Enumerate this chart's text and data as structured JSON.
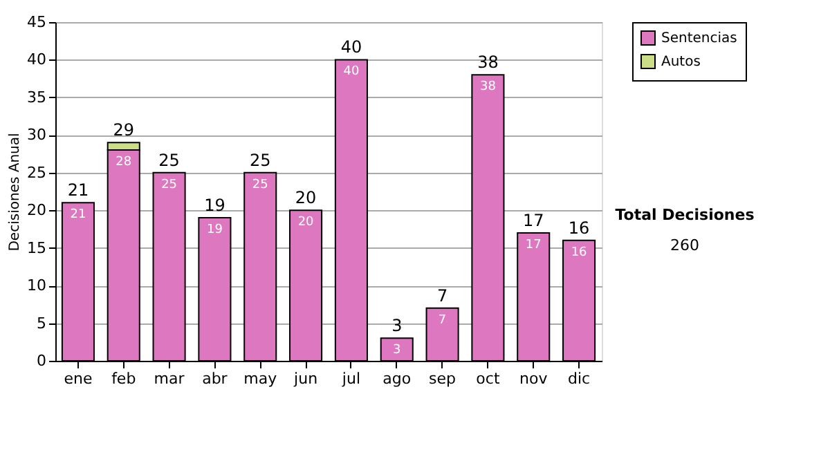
{
  "chart_data": {
    "type": "bar",
    "stacked": true,
    "ylabel": "Decisiones Anual",
    "categories": [
      "ene",
      "feb",
      "mar",
      "abr",
      "may",
      "jun",
      "jul",
      "ago",
      "sep",
      "oct",
      "nov",
      "dic"
    ],
    "series": [
      {
        "name": "Sentencias",
        "color": "#dd77c0",
        "values": [
          21,
          28,
          25,
          19,
          25,
          20,
          40,
          3,
          7,
          38,
          17,
          16
        ],
        "value_labels": [
          "21",
          "28",
          "25",
          "19",
          "25",
          "20",
          "40",
          "3",
          "7",
          "38",
          "17",
          "16"
        ]
      },
      {
        "name": "Autos",
        "color": "#ccdd88",
        "values": [
          null,
          1,
          null,
          null,
          null,
          null,
          null,
          null,
          null,
          null,
          null,
          null
        ]
      }
    ],
    "totals": [
      "21",
      "29",
      "25",
      "19",
      "25",
      "20",
      "40",
      "3",
      "7",
      "38",
      "17",
      "16"
    ],
    "ylim": [
      0,
      45
    ],
    "yticks": [
      0,
      5,
      10,
      15,
      20,
      25,
      30,
      35,
      40,
      45
    ],
    "grid": "y",
    "legend": "right",
    "annotations": [
      "Total Decisiones",
      "260"
    ]
  }
}
